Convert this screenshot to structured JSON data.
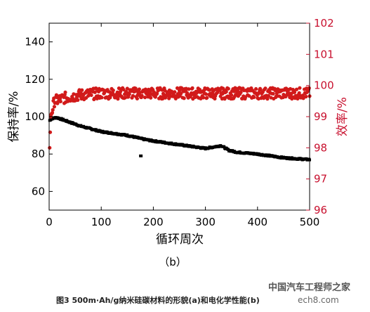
{
  "chart_data": {
    "type": "scatter",
    "panel_label": "（b）",
    "xlabel": "循环周次",
    "ylabel_left": "保持率/%",
    "ylabel_right": "效率/%",
    "xlim": [
      0,
      500
    ],
    "ylim_left": [
      50,
      150
    ],
    "ylim_right": [
      96,
      102
    ],
    "x_ticks": [
      0,
      100,
      200,
      300,
      400,
      500
    ],
    "y_left_ticks": [
      60,
      80,
      100,
      120,
      140
    ],
    "y_right_ticks": [
      96,
      97,
      98,
      99,
      100,
      101,
      102
    ],
    "grid": false,
    "retention_keypoints": {
      "x": [
        1,
        5,
        15,
        30,
        60,
        100,
        150,
        180,
        200,
        250,
        300,
        320,
        330,
        345,
        360,
        400,
        450,
        500
      ],
      "y": [
        98,
        99,
        99.5,
        98,
        95,
        92,
        90,
        88,
        87,
        85,
        83,
        84,
        84.5,
        82,
        81,
        80,
        78,
        77
      ]
    },
    "retention_outliers": {
      "x": [
        176
      ],
      "y": [
        79
      ]
    },
    "efficiency_keypoints": {
      "x": [
        1,
        3,
        10,
        30,
        60,
        100,
        200,
        300,
        400,
        500
      ],
      "y": [
        98,
        99,
        99.5,
        99.6,
        99.7,
        99.75,
        99.75,
        99.75,
        99.75,
        99.75
      ]
    },
    "efficiency_noise": 0.18,
    "colors": {
      "retention": "#000000",
      "efficiency": "#d11a1a",
      "right_axis": "#c8102e"
    }
  },
  "caption": "图3  500m·Ah/g纳米硅碳材料的形貌(a)和电化学性能(b)",
  "watermark": "中国汽车工程师之家",
  "watermark_url": "ech8.com"
}
